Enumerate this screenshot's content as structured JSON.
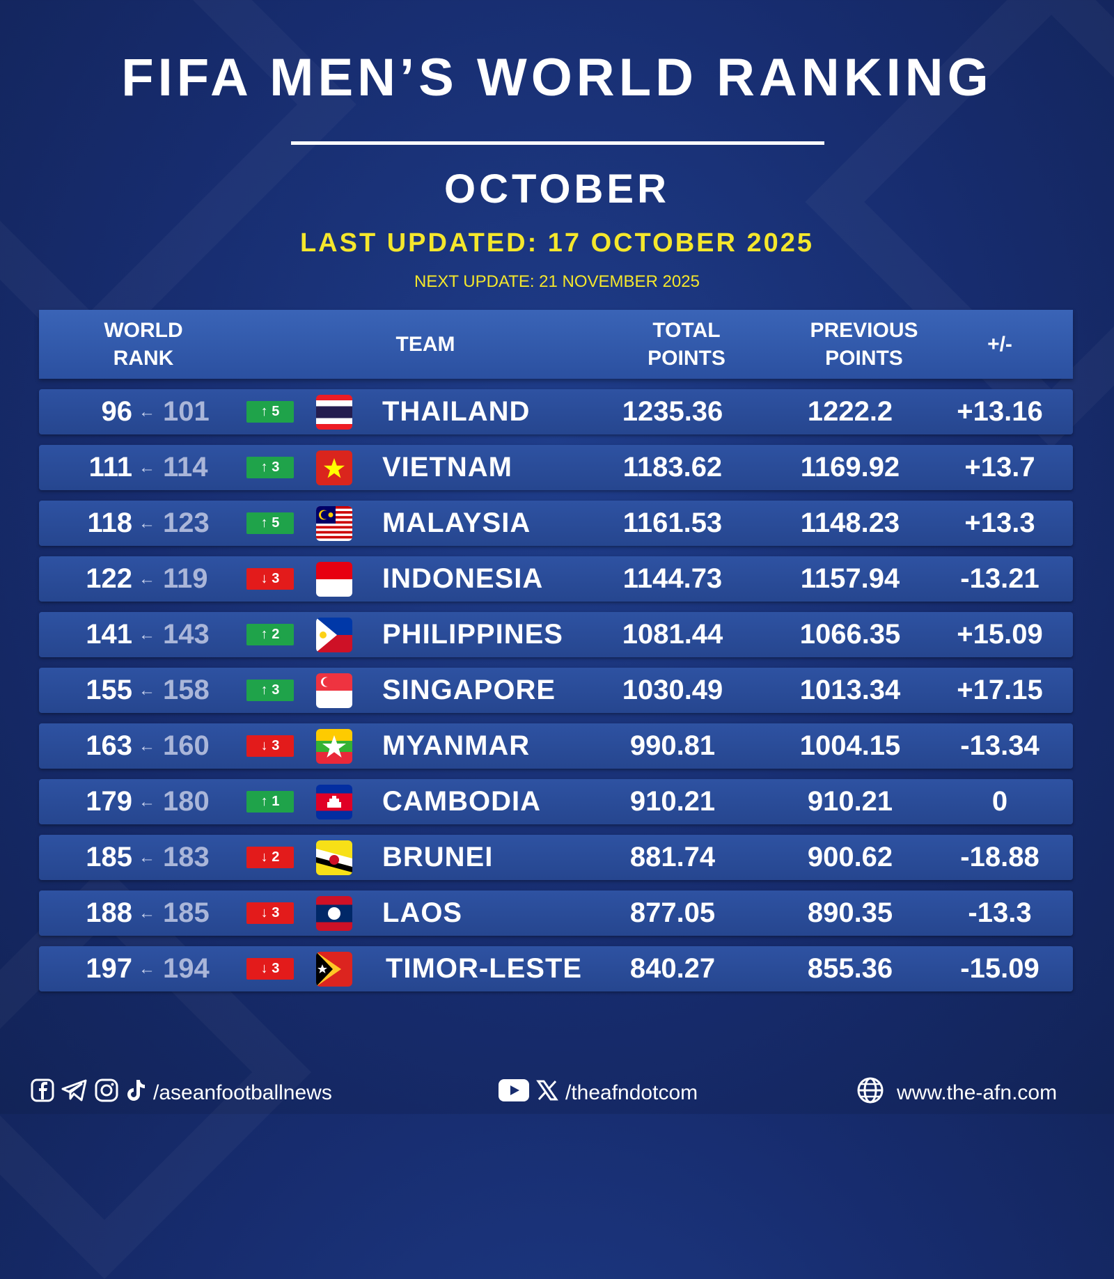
{
  "header": {
    "title": "FIFA MEN’S WORLD RANKING",
    "month": "OCTOBER",
    "last_updated": "LAST UPDATED: 17 OCTOBER 2025",
    "next_update": "NEXT UPDATE: 21 NOVEMBER 2025"
  },
  "columns": {
    "world_rank": "WORLD\nRANK",
    "team": "TEAM",
    "total_points": "TOTAL\nPOINTS",
    "previous_points": "PREVIOUS\nPOINTS",
    "change": "+/-"
  },
  "rows": [
    {
      "rank": "96",
      "prev_rank": "101",
      "move_dir": "up",
      "move": "↑ 5",
      "flag": "thailand-flag",
      "team": "THAILAND",
      "total": "1235.36",
      "previous": "1222.2",
      "diff": "+13.16"
    },
    {
      "rank": "111",
      "prev_rank": "114",
      "move_dir": "up",
      "move": "↑ 3",
      "flag": "vietnam-flag",
      "team": "VIETNAM",
      "total": "1183.62",
      "previous": "1169.92",
      "diff": "+13.7"
    },
    {
      "rank": "118",
      "prev_rank": "123",
      "move_dir": "up",
      "move": "↑ 5",
      "flag": "malaysia-flag",
      "team": "MALAYSIA",
      "total": "1161.53",
      "previous": "1148.23",
      "diff": "+13.3"
    },
    {
      "rank": "122",
      "prev_rank": "119",
      "move_dir": "down",
      "move": "↓ 3",
      "flag": "indonesia-flag",
      "team": "INDONESIA",
      "total": "1144.73",
      "previous": "1157.94",
      "diff": "-13.21"
    },
    {
      "rank": "141",
      "prev_rank": "143",
      "move_dir": "up",
      "move": "↑ 2",
      "flag": "philippines-flag",
      "team": "PHILIPPINES",
      "total": "1081.44",
      "previous": "1066.35",
      "diff": "+15.09"
    },
    {
      "rank": "155",
      "prev_rank": "158",
      "move_dir": "up",
      "move": "↑ 3",
      "flag": "singapore-flag",
      "team": "SINGAPORE",
      "total": "1030.49",
      "previous": "1013.34",
      "diff": "+17.15"
    },
    {
      "rank": "163",
      "prev_rank": "160",
      "move_dir": "down",
      "move": "↓ 3",
      "flag": "myanmar-flag",
      "team": "MYANMAR",
      "total": "990.81",
      "previous": "1004.15",
      "diff": "-13.34"
    },
    {
      "rank": "179",
      "prev_rank": "180",
      "move_dir": "up",
      "move": "↑ 1",
      "flag": "cambodia-flag",
      "team": "CAMBODIA",
      "total": "910.21",
      "previous": "910.21",
      "diff": "0"
    },
    {
      "rank": "185",
      "prev_rank": "183",
      "move_dir": "down",
      "move": "↓ 2",
      "flag": "brunei-flag",
      "team": "BRUNEI",
      "total": "881.74",
      "previous": "900.62",
      "diff": "-18.88"
    },
    {
      "rank": "188",
      "prev_rank": "185",
      "move_dir": "down",
      "move": "↓ 3",
      "flag": "laos-flag",
      "team": "LAOS",
      "total": "877.05",
      "previous": "890.35",
      "diff": "-13.3"
    },
    {
      "rank": "197",
      "prev_rank": "194",
      "move_dir": "down",
      "move": "↓ 3",
      "flag": "timor-leste-flag",
      "team": "TIMOR-LESTE",
      "total": "840.27",
      "previous": "855.36",
      "diff": "-15.09"
    }
  ],
  "rank_arrow": "←",
  "footer": {
    "social_handle_1": "/aseanfootballnews",
    "social_handle_2": "/theafndotcom",
    "website": "www.the-afn.com",
    "icons_left": [
      "facebook-icon",
      "telegram-icon",
      "instagram-icon",
      "tiktok-icon"
    ],
    "icons_middle": [
      "youtube-icon",
      "x-icon"
    ],
    "icon_right": "globe-icon"
  },
  "colors": {
    "background": "#172c6e",
    "row": "#2b4c9a",
    "highlight_yellow": "#f5e72c",
    "up_green": "#1fa34a",
    "down_red": "#e31b1b"
  }
}
